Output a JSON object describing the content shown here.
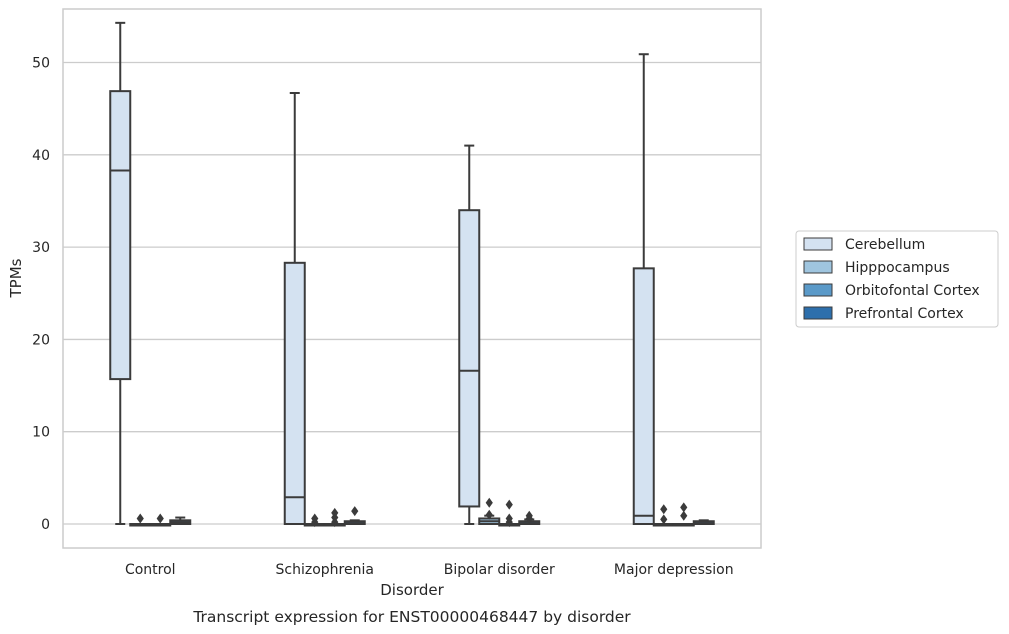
{
  "chart_data": {
    "type": "box",
    "title": "",
    "caption": "Transcript expression for ENST00000468447 by disorder",
    "xlabel": "Disorder",
    "ylabel": "TPMs",
    "ylim": [
      -2.6,
      55.8
    ],
    "yticks": [
      0,
      10,
      20,
      30,
      40,
      50
    ],
    "grid": true,
    "legend_position": "right",
    "categories": [
      "Control",
      "Schizophrenia",
      "Bipolar disorder",
      "Major depression"
    ],
    "series": [
      {
        "name": "Cerebellum",
        "color": "#d4e2f1",
        "boxes": [
          {
            "whislo": 0,
            "q1": 15.7,
            "med": 38.3,
            "q3": 46.9,
            "whishi": 54.3,
            "fliers": []
          },
          {
            "whislo": 0,
            "q1": 0,
            "med": 2.9,
            "q3": 28.3,
            "whishi": 46.7,
            "fliers": []
          },
          {
            "whislo": 0,
            "q1": 1.9,
            "med": 16.6,
            "q3": 34.0,
            "whishi": 41.0,
            "fliers": []
          },
          {
            "whislo": 0,
            "q1": 0,
            "med": 0.9,
            "q3": 27.7,
            "whishi": 50.9,
            "fliers": []
          }
        ]
      },
      {
        "name": "Hipppocampus",
        "color": "#9fc5df",
        "boxes": [
          {
            "whislo": 0,
            "q1": 0,
            "med": 0,
            "q3": 0,
            "whishi": 0,
            "fliers": [
              0.6
            ]
          },
          {
            "whislo": 0,
            "q1": 0,
            "med": 0,
            "q3": 0,
            "whishi": 0,
            "fliers": [
              0.2,
              0.6
            ]
          },
          {
            "whislo": 0,
            "q1": 0,
            "med": 0.3,
            "q3": 0.6,
            "whishi": 0.9,
            "fliers": [
              1.0,
              2.3
            ]
          },
          {
            "whislo": 0,
            "q1": 0,
            "med": 0,
            "q3": 0,
            "whishi": 0,
            "fliers": [
              0.5,
              1.6
            ]
          }
        ]
      },
      {
        "name": "Orbitofontal Cortex",
        "color": "#5b9ac9",
        "boxes": [
          {
            "whislo": 0,
            "q1": 0,
            "med": 0,
            "q3": 0,
            "whishi": 0,
            "fliers": [
              0.6
            ]
          },
          {
            "whislo": 0,
            "q1": 0,
            "med": 0,
            "q3": 0,
            "whishi": 0,
            "fliers": [
              0.2,
              0.7,
              1.2
            ]
          },
          {
            "whislo": 0,
            "q1": 0,
            "med": 0,
            "q3": 0,
            "whishi": 0,
            "fliers": [
              0.2,
              0.6,
              2.1
            ]
          },
          {
            "whislo": 0,
            "q1": 0,
            "med": 0,
            "q3": 0,
            "whishi": 0,
            "fliers": [
              0.9,
              1.8
            ]
          }
        ]
      },
      {
        "name": "Prefrontal Cortex",
        "color": "#2d6fac",
        "boxes": [
          {
            "whislo": 0,
            "q1": 0,
            "med": 0.2,
            "q3": 0.4,
            "whishi": 0.7,
            "fliers": []
          },
          {
            "whislo": 0,
            "q1": 0,
            "med": 0.1,
            "q3": 0.3,
            "whishi": 0.4,
            "fliers": [
              1.4
            ]
          },
          {
            "whislo": 0,
            "q1": 0,
            "med": 0.1,
            "q3": 0.3,
            "whishi": 0.5,
            "fliers": [
              0.6,
              0.9
            ]
          },
          {
            "whislo": 0,
            "q1": 0,
            "med": 0.1,
            "q3": 0.3,
            "whishi": 0.4,
            "fliers": []
          }
        ]
      }
    ],
    "colors": {
      "line": "#3b3b3b",
      "grid": "#cccccc",
      "frame": "#cccccc"
    }
  }
}
